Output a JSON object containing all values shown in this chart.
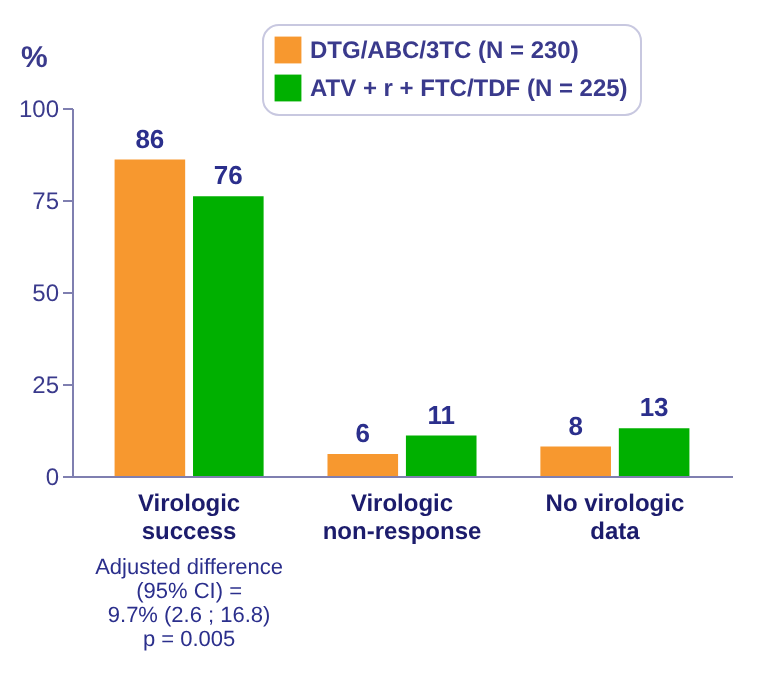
{
  "chart_data": {
    "type": "bar",
    "ylabel": "%",
    "categories": [
      "Virologic success",
      "Virologic non-response",
      "No virologic data"
    ],
    "series": [
      {
        "name": "DTG/ABC/3TC (N = 230)",
        "color": "#f7982f",
        "values": [
          86,
          6,
          8
        ]
      },
      {
        "name": "ATV + r + FTC/TDF (N = 225)",
        "color": "#00b000",
        "values": [
          76,
          11,
          13
        ]
      }
    ],
    "ylim": [
      0,
      100
    ],
    "yticks": [
      0,
      25,
      50,
      75,
      100
    ],
    "grid": false,
    "legend": "top",
    "data_labels": true,
    "annotations": [
      "Adjusted difference\n(95% CI) =\n9.7% (2.6 ; 16.8)\np = 0.005"
    ]
  }
}
